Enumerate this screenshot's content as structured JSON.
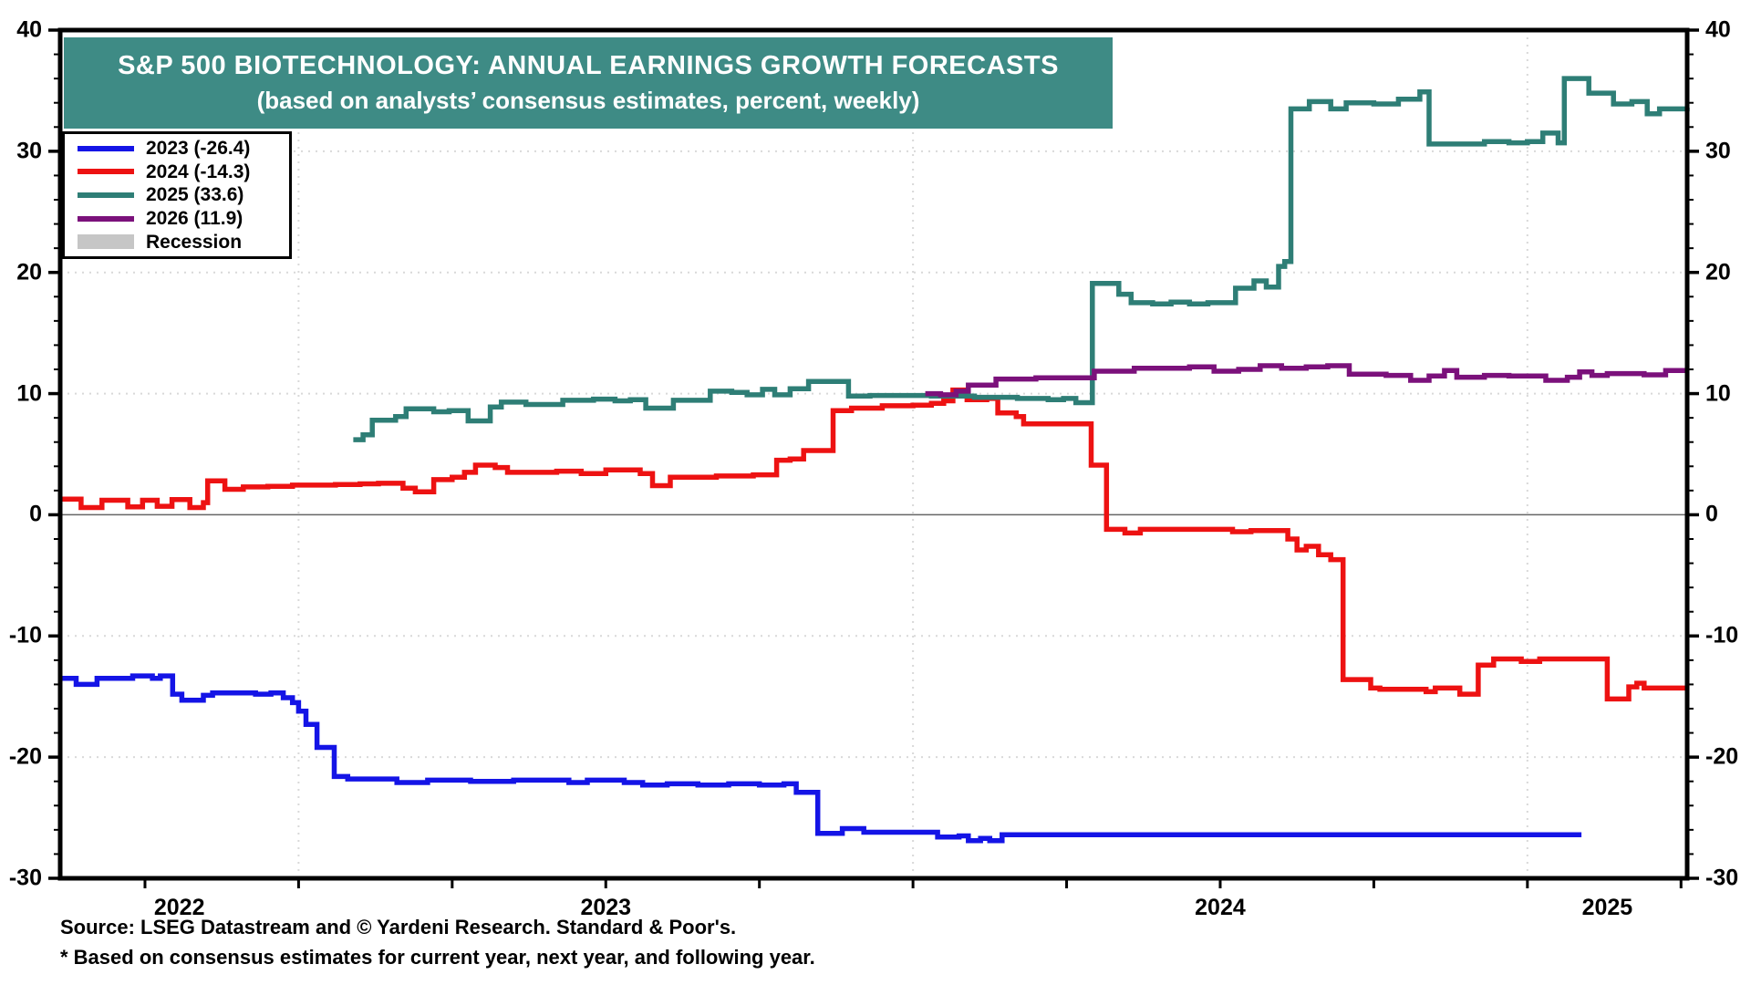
{
  "title": {
    "line1": "S&P 500 BIOTECHNOLOGY: ANNUAL EARNINGS GROWTH FORECASTS",
    "line2": "(based on analysts’ consensus estimates, percent, weekly)"
  },
  "footer": {
    "source": "Source: LSEG Datastream and © Yardeni Research. Standard & Poor's.",
    "footnote": "* Based on consensus estimates for current year, next year, and following year."
  },
  "colors": {
    "banner_bg": "#3E8B85",
    "blue": "#1414E6",
    "red": "#ED1212",
    "teal": "#2E7E76",
    "purple": "#7B117B",
    "recession_gray": "#C6C6C6",
    "gridline": "#D9D9D9",
    "zero_line": "#666666",
    "axis": "#000000"
  },
  "legend": {
    "entries": [
      {
        "label": "2023 (-26.4)",
        "swatch": "line",
        "color_key": "blue"
      },
      {
        "label": "2024 (-14.3)",
        "swatch": "line",
        "color_key": "red"
      },
      {
        "label": "2025 (33.6)",
        "swatch": "line",
        "color_key": "teal"
      },
      {
        "label": "2026 (11.9)",
        "swatch": "line",
        "color_key": "purple"
      },
      {
        "label": "Recession",
        "swatch": "rect",
        "color_key": "recession_gray"
      }
    ]
  },
  "axes": {
    "y_ticks": [
      {
        "label": "40",
        "value": 40
      },
      {
        "label": "30",
        "value": 30
      },
      {
        "label": "20",
        "value": 20
      },
      {
        "label": "10",
        "value": 10
      },
      {
        "label": "0",
        "value": 0
      },
      {
        "label": "-10",
        "value": -10
      },
      {
        "label": "-20",
        "value": -20
      },
      {
        "label": "-30",
        "value": -30
      }
    ],
    "y_minor_tick_step": 2,
    "x_labels": [
      {
        "label": "2022",
        "t": 2022.806
      },
      {
        "label": "2023",
        "t": 2023.5
      },
      {
        "label": "2024",
        "t": 2024.5
      },
      {
        "label": "2025",
        "t": 2025.13
      }
    ],
    "x_gridline_years": [
      2023,
      2024,
      2025
    ],
    "x_minor_tick_step": 0.25
  },
  "chart_data": {
    "type": "line",
    "title": "S&P 500 BIOTECHNOLOGY: ANNUAL EARNINGS GROWTH FORECASTS",
    "subtitle": "(based on analysts’ consensus estimates, percent, weekly)",
    "x_unit": "decimal_year_weekly",
    "x_range": [
      2022.612,
      2025.26
    ],
    "ylim": [
      -30,
      40
    ],
    "grid": "dotted",
    "legend_position": "top-left",
    "interpolation": "step-after",
    "series": [
      {
        "name": "2023",
        "final_value": -26.4,
        "color_key": "blue",
        "points": [
          [
            2022.612,
            -13.5
          ],
          [
            2022.638,
            -14.0
          ],
          [
            2022.672,
            -13.5
          ],
          [
            2022.73,
            -13.3
          ],
          [
            2022.762,
            -13.5
          ],
          [
            2022.775,
            -13.3
          ],
          [
            2022.795,
            -14.8
          ],
          [
            2022.81,
            -15.3
          ],
          [
            2022.845,
            -14.9
          ],
          [
            2022.86,
            -14.7
          ],
          [
            2022.93,
            -14.8
          ],
          [
            2022.955,
            -14.7
          ],
          [
            2022.975,
            -15.1
          ],
          [
            2022.99,
            -15.5
          ],
          [
            2023.0,
            -16.2
          ],
          [
            2023.012,
            -17.3
          ],
          [
            2023.03,
            -19.2
          ],
          [
            2023.058,
            -21.6
          ],
          [
            2023.08,
            -21.8
          ],
          [
            2023.16,
            -22.1
          ],
          [
            2023.21,
            -21.9
          ],
          [
            2023.28,
            -22.0
          ],
          [
            2023.35,
            -21.9
          ],
          [
            2023.44,
            -22.1
          ],
          [
            2023.47,
            -21.9
          ],
          [
            2023.53,
            -22.1
          ],
          [
            2023.56,
            -22.3
          ],
          [
            2023.6,
            -22.2
          ],
          [
            2023.65,
            -22.3
          ],
          [
            2023.7,
            -22.2
          ],
          [
            2023.75,
            -22.3
          ],
          [
            2023.79,
            -22.2
          ],
          [
            2023.81,
            -22.9
          ],
          [
            2023.845,
            -26.3
          ],
          [
            2023.885,
            -25.9
          ],
          [
            2023.92,
            -26.2
          ],
          [
            2024.04,
            -26.6
          ],
          [
            2024.075,
            -26.5
          ],
          [
            2024.09,
            -26.9
          ],
          [
            2024.11,
            -26.7
          ],
          [
            2024.125,
            -26.9
          ],
          [
            2024.145,
            -26.4
          ],
          [
            2025.088,
            -26.4
          ]
        ]
      },
      {
        "name": "2024",
        "final_value": -14.3,
        "color_key": "red",
        "points": [
          [
            2022.612,
            1.3
          ],
          [
            2022.646,
            0.6
          ],
          [
            2022.68,
            1.2
          ],
          [
            2022.722,
            0.65
          ],
          [
            2022.746,
            1.2
          ],
          [
            2022.77,
            0.7
          ],
          [
            2022.794,
            1.25
          ],
          [
            2022.823,
            0.6
          ],
          [
            2022.845,
            1.0
          ],
          [
            2022.852,
            2.8
          ],
          [
            2022.88,
            2.1
          ],
          [
            2022.91,
            2.3
          ],
          [
            2022.95,
            2.35
          ],
          [
            2022.99,
            2.45
          ],
          [
            2023.06,
            2.5
          ],
          [
            2023.1,
            2.55
          ],
          [
            2023.13,
            2.6
          ],
          [
            2023.17,
            2.2
          ],
          [
            2023.19,
            1.9
          ],
          [
            2023.22,
            2.9
          ],
          [
            2023.25,
            3.1
          ],
          [
            2023.27,
            3.5
          ],
          [
            2023.288,
            4.1
          ],
          [
            2023.32,
            3.9
          ],
          [
            2023.34,
            3.5
          ],
          [
            2023.42,
            3.6
          ],
          [
            2023.46,
            3.4
          ],
          [
            2023.5,
            3.7
          ],
          [
            2023.556,
            3.4
          ],
          [
            2023.576,
            2.4
          ],
          [
            2023.605,
            3.1
          ],
          [
            2023.68,
            3.2
          ],
          [
            2023.74,
            3.3
          ],
          [
            2023.778,
            4.5
          ],
          [
            2023.8,
            4.6
          ],
          [
            2023.822,
            5.3
          ],
          [
            2023.87,
            8.6
          ],
          [
            2023.9,
            8.8
          ],
          [
            2023.95,
            9.0
          ],
          [
            2024.0,
            9.05
          ],
          [
            2024.03,
            9.2
          ],
          [
            2024.05,
            9.4
          ],
          [
            2024.065,
            10.3
          ],
          [
            2024.088,
            9.5
          ],
          [
            2024.12,
            9.6
          ],
          [
            2024.138,
            8.4
          ],
          [
            2024.168,
            8.1
          ],
          [
            2024.18,
            7.5
          ],
          [
            2024.29,
            4.1
          ],
          [
            2024.315,
            -1.2
          ],
          [
            2024.345,
            -1.5
          ],
          [
            2024.37,
            -1.2
          ],
          [
            2024.52,
            -1.4
          ],
          [
            2024.55,
            -1.3
          ],
          [
            2024.61,
            -2.0
          ],
          [
            2024.625,
            -2.9
          ],
          [
            2024.64,
            -2.6
          ],
          [
            2024.66,
            -3.3
          ],
          [
            2024.68,
            -3.7
          ],
          [
            2024.7,
            -13.6
          ],
          [
            2024.745,
            -14.3
          ],
          [
            2024.76,
            -14.4
          ],
          [
            2024.835,
            -14.6
          ],
          [
            2024.85,
            -14.3
          ],
          [
            2024.89,
            -14.8
          ],
          [
            2024.92,
            -12.4
          ],
          [
            2024.945,
            -11.9
          ],
          [
            2024.99,
            -12.1
          ],
          [
            2025.02,
            -11.9
          ],
          [
            2025.13,
            -15.2
          ],
          [
            2025.165,
            -14.2
          ],
          [
            2025.178,
            -13.9
          ],
          [
            2025.19,
            -14.3
          ],
          [
            2025.26,
            -14.3
          ]
        ]
      },
      {
        "name": "2025",
        "final_value": 33.6,
        "color_key": "teal",
        "points": [
          [
            2023.089,
            6.2
          ],
          [
            2023.105,
            6.6
          ],
          [
            2023.12,
            7.8
          ],
          [
            2023.158,
            8.1
          ],
          [
            2023.175,
            8.75
          ],
          [
            2023.22,
            8.5
          ],
          [
            2023.245,
            8.6
          ],
          [
            2023.276,
            7.75
          ],
          [
            2023.312,
            8.9
          ],
          [
            2023.33,
            9.3
          ],
          [
            2023.37,
            9.1
          ],
          [
            2023.43,
            9.45
          ],
          [
            2023.48,
            9.55
          ],
          [
            2023.515,
            9.4
          ],
          [
            2023.54,
            9.5
          ],
          [
            2023.565,
            8.8
          ],
          [
            2023.61,
            9.45
          ],
          [
            2023.67,
            10.2
          ],
          [
            2023.705,
            10.1
          ],
          [
            2023.73,
            9.9
          ],
          [
            2023.755,
            10.35
          ],
          [
            2023.775,
            9.9
          ],
          [
            2023.8,
            10.4
          ],
          [
            2023.83,
            11.0
          ],
          [
            2023.895,
            9.8
          ],
          [
            2023.93,
            9.85
          ],
          [
            2024.03,
            9.8
          ],
          [
            2024.1,
            9.7
          ],
          [
            2024.17,
            9.6
          ],
          [
            2024.22,
            9.5
          ],
          [
            2024.245,
            9.6
          ],
          [
            2024.265,
            9.25
          ],
          [
            2024.292,
            19.1
          ],
          [
            2024.335,
            18.2
          ],
          [
            2024.355,
            17.5
          ],
          [
            2024.39,
            17.4
          ],
          [
            2024.42,
            17.55
          ],
          [
            2024.45,
            17.4
          ],
          [
            2024.48,
            17.5
          ],
          [
            2024.525,
            18.7
          ],
          [
            2024.555,
            19.3
          ],
          [
            2024.575,
            18.8
          ],
          [
            2024.595,
            20.5
          ],
          [
            2024.605,
            20.9
          ],
          [
            2024.615,
            33.5
          ],
          [
            2024.645,
            34.1
          ],
          [
            2024.68,
            33.5
          ],
          [
            2024.705,
            34.0
          ],
          [
            2024.75,
            33.9
          ],
          [
            2024.79,
            34.3
          ],
          [
            2024.825,
            34.9
          ],
          [
            2024.84,
            30.6
          ],
          [
            2024.93,
            30.8
          ],
          [
            2024.97,
            30.7
          ],
          [
            2025.0,
            30.8
          ],
          [
            2025.025,
            31.5
          ],
          [
            2025.05,
            30.7
          ],
          [
            2025.06,
            36.0
          ],
          [
            2025.1,
            34.8
          ],
          [
            2025.14,
            33.9
          ],
          [
            2025.17,
            34.1
          ],
          [
            2025.195,
            33.1
          ],
          [
            2025.215,
            33.5
          ],
          [
            2025.26,
            33.6
          ]
        ]
      },
      {
        "name": "2026",
        "final_value": 11.9,
        "color_key": "purple",
        "points": [
          [
            2024.02,
            10.0
          ],
          [
            2024.045,
            9.9
          ],
          [
            2024.07,
            10.2
          ],
          [
            2024.09,
            10.7
          ],
          [
            2024.135,
            11.2
          ],
          [
            2024.2,
            11.3
          ],
          [
            2024.295,
            11.85
          ],
          [
            2024.36,
            12.1
          ],
          [
            2024.45,
            12.2
          ],
          [
            2024.49,
            11.85
          ],
          [
            2024.53,
            12.0
          ],
          [
            2024.565,
            12.3
          ],
          [
            2024.6,
            12.1
          ],
          [
            2024.64,
            12.2
          ],
          [
            2024.675,
            12.3
          ],
          [
            2024.71,
            11.6
          ],
          [
            2024.77,
            11.5
          ],
          [
            2024.81,
            11.1
          ],
          [
            2024.84,
            11.45
          ],
          [
            2024.865,
            11.9
          ],
          [
            2024.885,
            11.35
          ],
          [
            2024.93,
            11.5
          ],
          [
            2024.97,
            11.45
          ],
          [
            2025.03,
            11.1
          ],
          [
            2025.065,
            11.35
          ],
          [
            2025.085,
            11.8
          ],
          [
            2025.105,
            11.5
          ],
          [
            2025.13,
            11.65
          ],
          [
            2025.19,
            11.55
          ],
          [
            2025.225,
            11.9
          ],
          [
            2025.26,
            11.9
          ]
        ]
      }
    ]
  }
}
